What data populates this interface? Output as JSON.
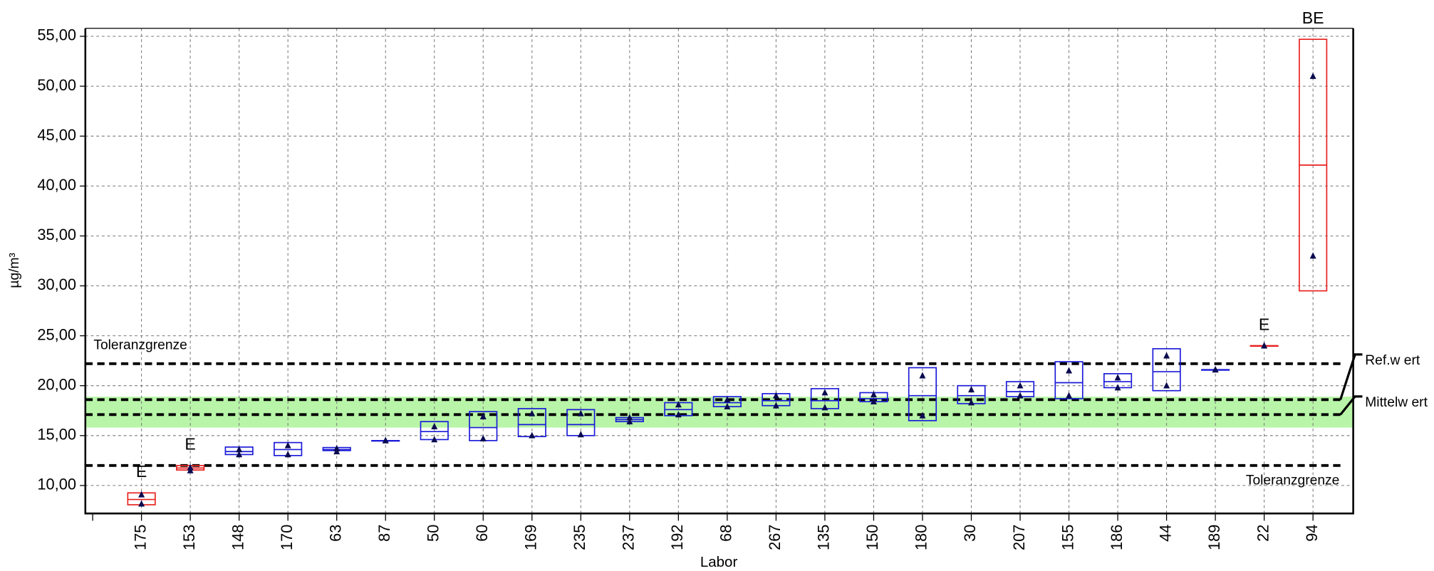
{
  "chart_data": {
    "type": "box",
    "ylabel": "µg/m³",
    "xlabel": "Labor",
    "ylim": [
      7.2,
      55.8
    ],
    "yticks": [
      {
        "value": 10,
        "label": "10,00"
      },
      {
        "value": 15,
        "label": "15,00"
      },
      {
        "value": 20,
        "label": "20,00"
      },
      {
        "value": 25,
        "label": "25,00"
      },
      {
        "value": 30,
        "label": "30,00"
      },
      {
        "value": 35,
        "label": "35,00"
      },
      {
        "value": 40,
        "label": "40,00"
      },
      {
        "value": 45,
        "label": "45,00"
      },
      {
        "value": 50,
        "label": "50,00"
      },
      {
        "value": 55,
        "label": "55,00"
      }
    ],
    "grid": true,
    "categories": [
      "175",
      "153",
      "148",
      "170",
      "63",
      "87",
      "50",
      "60",
      "169",
      "235",
      "237",
      "192",
      "68",
      "267",
      "135",
      "150",
      "180",
      "30",
      "207",
      "155",
      "186",
      "44",
      "189",
      "22",
      "94"
    ],
    "low": [
      8.07,
      11.55,
      13.1,
      13.0,
      13.5,
      14.5,
      14.6,
      14.5,
      14.9,
      15.0,
      16.4,
      17.0,
      17.9,
      18.0,
      17.7,
      18.4,
      16.5,
      18.2,
      18.9,
      18.7,
      19.8,
      19.5,
      21.6,
      24.0,
      29.5
    ],
    "high": [
      9.26,
      12.0,
      13.85,
      14.3,
      13.8,
      14.5,
      16.4,
      17.4,
      17.7,
      17.6,
      16.8,
      18.3,
      18.9,
      19.2,
      19.7,
      19.3,
      21.8,
      20.0,
      20.4,
      22.4,
      21.2,
      23.7,
      21.6,
      24.0,
      54.7
    ],
    "mean": [
      8.6,
      11.75,
      13.4,
      13.6,
      13.6,
      14.5,
      15.4,
      15.8,
      16.1,
      16.1,
      16.6,
      17.6,
      18.3,
      18.5,
      18.5,
      18.7,
      19.0,
      19.0,
      19.4,
      20.3,
      20.4,
      21.4,
      21.6,
      24.0,
      42.1
    ],
    "results": [
      [
        9.08,
        8.16
      ],
      [
        11.8,
        11.5
      ],
      [
        13.6,
        13.1
      ],
      [
        14.0,
        13.1
      ],
      [
        13.7,
        13.4
      ],
      [
        14.5,
        14.5
      ],
      [
        15.9,
        14.6
      ],
      [
        16.9,
        14.7
      ],
      [
        17.2,
        15.0
      ],
      [
        17.2,
        15.1
      ],
      [
        16.8,
        16.4
      ],
      [
        18.1,
        17.1
      ],
      [
        18.6,
        17.9
      ],
      [
        19.0,
        18.0
      ],
      [
        19.3,
        17.8
      ],
      [
        19.1,
        18.4
      ],
      [
        21.0,
        17.0
      ],
      [
        19.6,
        18.3
      ],
      [
        20.0,
        19.0
      ],
      [
        21.5,
        19.0
      ],
      [
        20.8,
        19.8
      ],
      [
        23.0,
        20.0
      ],
      [
        21.6,
        21.6
      ],
      [
        24.0,
        24.0
      ],
      [
        51.0,
        33.0
      ]
    ],
    "colors": [
      "#e8201e",
      "#e8201e",
      "#1a1ad8",
      "#1a1ad8",
      "#1a1ad8",
      "#1a1ad8",
      "#1a1ad8",
      "#1a1ad8",
      "#1a1ad8",
      "#1a1ad8",
      "#1a1ad8",
      "#1a1ad8",
      "#1a1ad8",
      "#1a1ad8",
      "#1a1ad8",
      "#1a1ad8",
      "#1a1ad8",
      "#1a1ad8",
      "#1a1ad8",
      "#1a1ad8",
      "#1a1ad8",
      "#1a1ad8",
      "#1a1ad8",
      "#e8201e",
      "#e8201e"
    ],
    "flags": [
      "E",
      "E",
      null,
      null,
      null,
      null,
      null,
      null,
      null,
      null,
      null,
      null,
      null,
      null,
      null,
      null,
      null,
      null,
      null,
      null,
      null,
      null,
      null,
      "E",
      "BE"
    ],
    "band": {
      "range": [
        15.8,
        18.9
      ],
      "color": "#b8f5a8"
    },
    "reference_lines": [
      {
        "label": "Toleranzgrenze",
        "value": 22.2
      },
      {
        "label": "Ref.w ert",
        "value": 18.6
      },
      {
        "label": "Mittelw ert",
        "value": 17.1
      },
      {
        "label": "Toleranzgrenze",
        "value": 12.0
      }
    ]
  }
}
